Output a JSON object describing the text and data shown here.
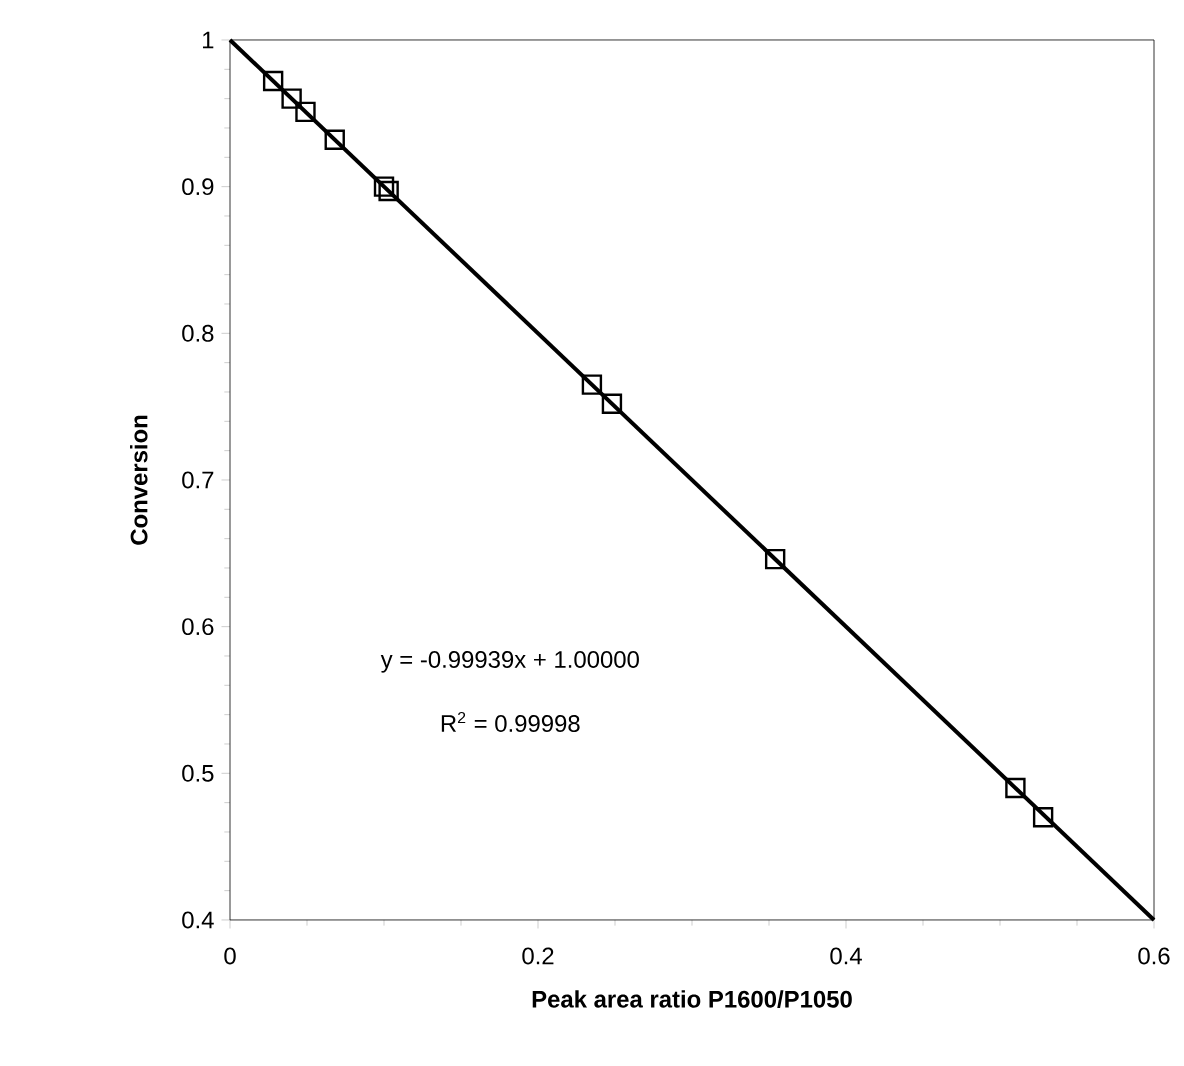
{
  "chart_data": {
    "type": "scatter",
    "xlabel": "Peak area ratio P1600/P1050",
    "ylabel": "Conversion",
    "xlim": [
      0,
      0.6
    ],
    "ylim": [
      0.4,
      1
    ],
    "xticks": [
      0,
      0.2,
      0.4,
      0.6
    ],
    "yticks": [
      0.4,
      0.5,
      0.6,
      0.7,
      0.8,
      0.9,
      1
    ],
    "grid": false,
    "series": [
      {
        "color": "#000000",
        "marker": "square",
        "x": [
          0.028,
          0.04,
          0.049,
          0.068,
          0.1,
          0.103,
          0.235,
          0.248,
          0.354,
          0.51,
          0.528
        ],
        "values": [
          0.972,
          0.96,
          0.951,
          0.932,
          0.9,
          0.897,
          0.765,
          0.752,
          0.646,
          0.49,
          0.47
        ]
      },
      {
        "type": "line",
        "color": "#000000",
        "marker": "none",
        "line_style": "solid",
        "x": [
          0,
          0.6
        ],
        "values": [
          1.0,
          0.4
        ]
      }
    ],
    "annotations": [
      "y = -0.99939x + 1.00000",
      "R$^{2}$ = 0.99998"
    ]
  }
}
